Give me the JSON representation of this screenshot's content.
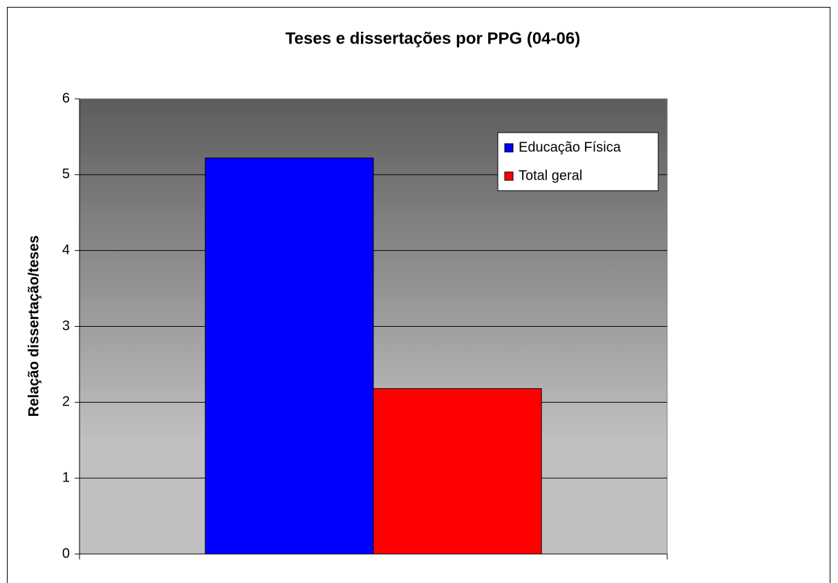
{
  "chart_data": {
    "type": "bar",
    "title": "Teses e dissertações por PPG (04-06)",
    "y_label": "Relação dissertação/teses",
    "categories": [
      null
    ],
    "series": [
      {
        "name": "Educação Física",
        "color": "#0000ff",
        "values": [
          5.22
        ]
      },
      {
        "name": "Total geral",
        "color": "#ff0000",
        "values": [
          2.18
        ]
      }
    ],
    "ylim": [
      0,
      6
    ],
    "yticks": [
      0,
      1,
      2,
      3,
      4,
      5,
      6
    ],
    "grid": true,
    "legend": "upper right"
  }
}
